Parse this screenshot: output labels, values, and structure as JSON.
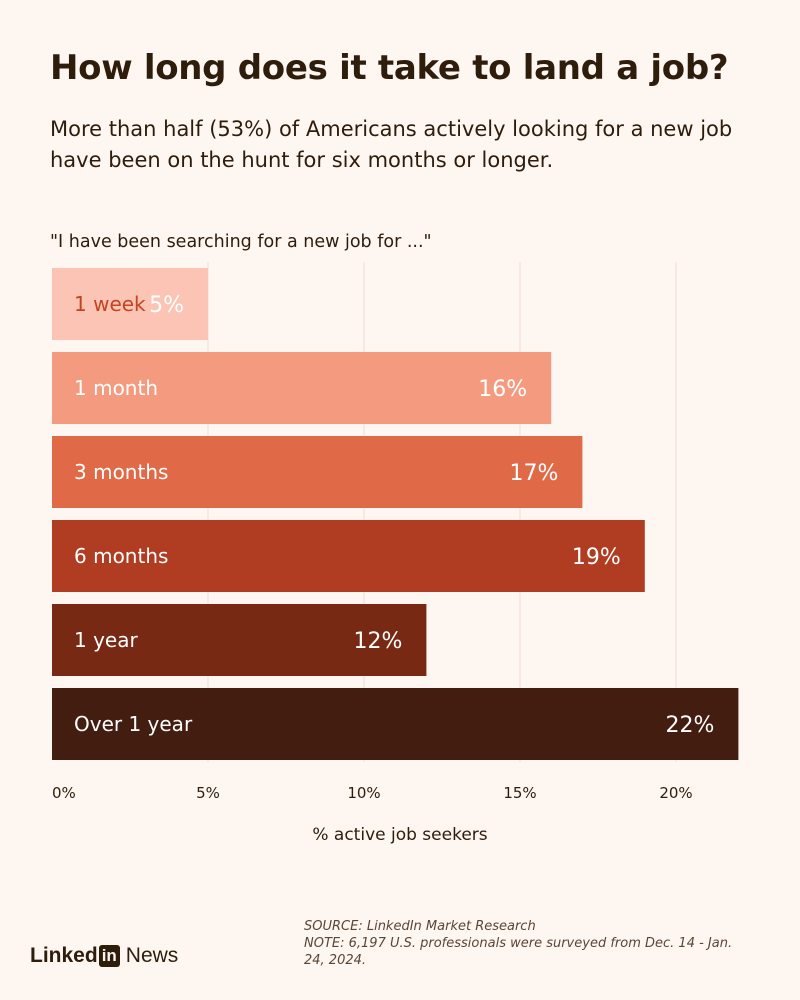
{
  "title": "How long does it take to land a job?",
  "subtitle_line1": "More than half (53%) of Americans actively looking for a new job",
  "subtitle_line2": "have been on the hunt for six months or longer.",
  "question": "\"I have been searching for a new job for ...\"",
  "source_line1": "SOURCE: LinkedIn Market Research",
  "source_line2": "NOTE: 6,197 U.S. professionals were surveyed from Dec. 14 - Jan.",
  "source_line3": "24, 2024.",
  "logo": {
    "text": "Linked",
    "in": "in",
    "suffix": "News"
  },
  "chart_data": {
    "type": "bar",
    "orientation": "horizontal",
    "categories": [
      "1 week",
      "1 month",
      "3 months",
      "6 months",
      "1 year",
      "Over 1 year"
    ],
    "values": [
      5,
      16,
      17,
      19,
      12,
      22
    ],
    "value_labels": [
      "5%",
      "16%",
      "17%",
      "19%",
      "12%",
      "22%"
    ],
    "bar_colors": [
      "#fcc4b4",
      "#f49a7f",
      "#e06a48",
      "#b03c21",
      "#782914",
      "#441d11"
    ],
    "label_colors": [
      "#c2451f",
      "#ffffff",
      "#ffffff",
      "#ffffff",
      "#ffffff",
      "#ffffff"
    ],
    "xlim": [
      0,
      22
    ],
    "xticks": [
      0,
      5,
      10,
      15,
      20
    ],
    "xtick_labels": [
      "0%",
      "5%",
      "10%",
      "15%",
      "20%"
    ],
    "xlabel": "% active job seekers",
    "grid": true
  }
}
